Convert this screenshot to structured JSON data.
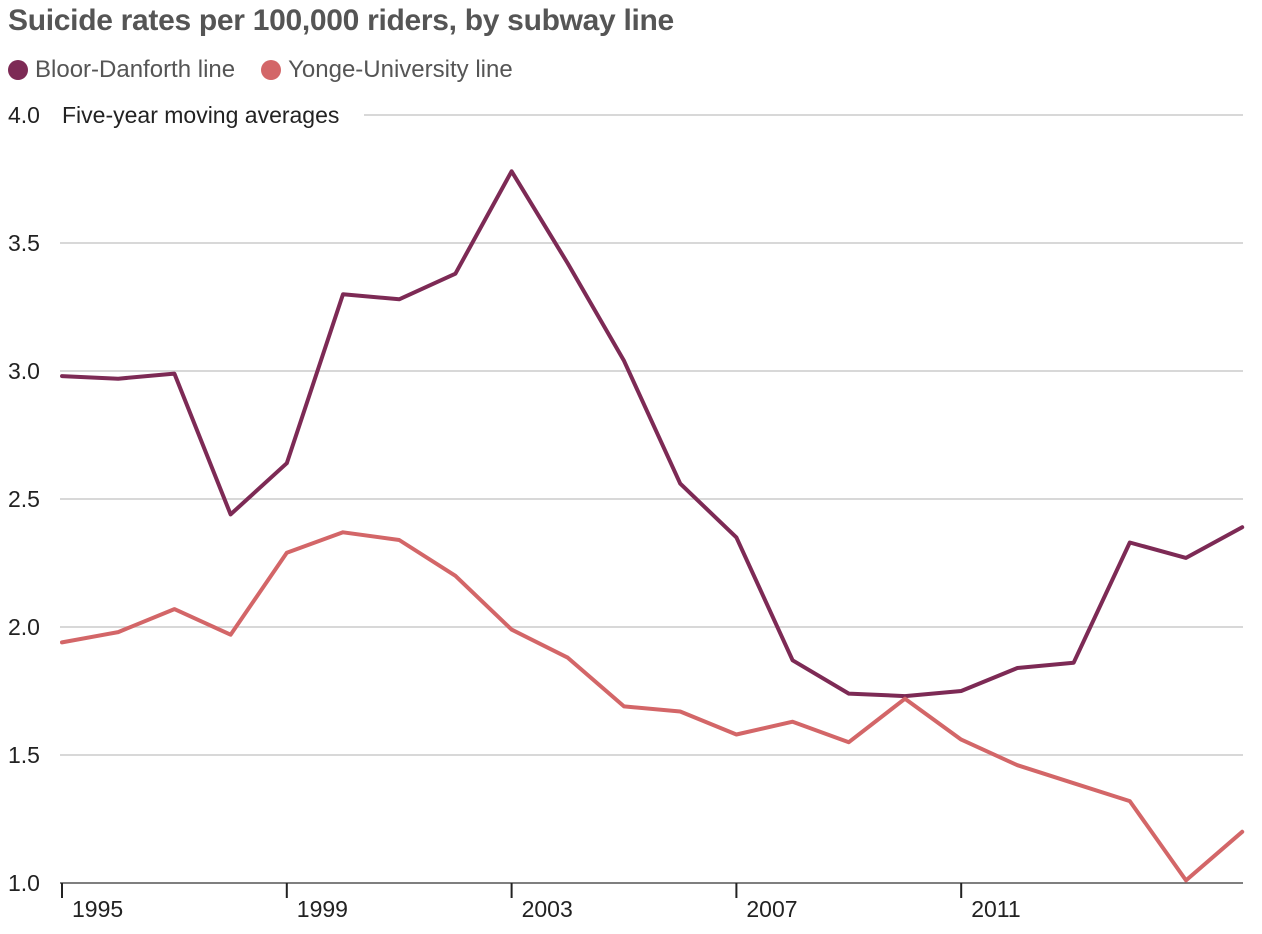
{
  "chart_data": {
    "type": "line",
    "title": "Suicide rates per 100,000 riders, by subway line",
    "subtitle": "Five-year moving averages",
    "x": [
      1995,
      1996,
      1997,
      1998,
      1999,
      2000,
      2001,
      2002,
      2003,
      2004,
      2005,
      2006,
      2007,
      2008,
      2009,
      2010,
      2011,
      2012,
      2013,
      2014,
      2015,
      2016
    ],
    "x_ticks": [
      1995,
      1999,
      2003,
      2007,
      2011
    ],
    "y_ticks": [
      "4.0",
      "3.5",
      "3.0",
      "2.5",
      "2.0",
      "1.5",
      "1.0"
    ],
    "ylim": [
      1.0,
      4.0
    ],
    "xlabel": "",
    "ylabel": "",
    "grid": true,
    "legend_position": "top-left",
    "series": [
      {
        "name": "Bloor-Danforth line",
        "color": "#7d2a55",
        "values": [
          2.98,
          2.97,
          2.99,
          2.44,
          2.64,
          3.3,
          3.28,
          3.38,
          3.78,
          3.42,
          3.04,
          2.56,
          2.35,
          1.87,
          1.74,
          1.73,
          1.75,
          1.84,
          1.86,
          2.33,
          2.27,
          2.39
        ]
      },
      {
        "name": "Yonge-University line",
        "color": "#d36668",
        "values": [
          1.94,
          1.98,
          2.07,
          1.97,
          2.29,
          2.37,
          2.34,
          2.2,
          1.99,
          1.88,
          1.69,
          1.67,
          1.58,
          1.63,
          1.55,
          1.72,
          1.56,
          1.46,
          1.39,
          1.32,
          1.01,
          1.2
        ]
      }
    ]
  }
}
